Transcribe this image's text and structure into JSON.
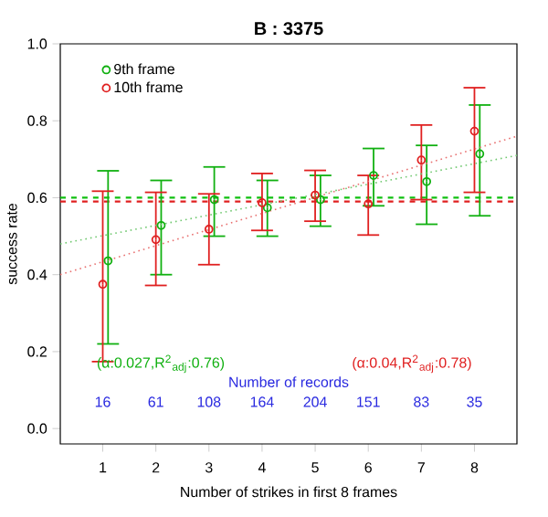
{
  "chart_data": {
    "type": "scatter",
    "title": "B : 3375",
    "xlabel": "Number of strikes in first 8 frames",
    "ylabel": "success rate",
    "xlim": [
      0.2,
      8.8
    ],
    "ylim": [
      -0.04,
      1.0
    ],
    "xticks": [
      1,
      2,
      3,
      4,
      5,
      6,
      7,
      8
    ],
    "yticks": [
      {
        "value": 0,
        "label": "0.0"
      },
      0.2,
      0.4,
      0.6,
      0.8,
      {
        "value": 1,
        "label": "1.0"
      }
    ],
    "marker": "circle",
    "legend": "top left",
    "grid": false,
    "series": [
      {
        "name": "9th frame",
        "color": "#10b010",
        "x": [
          1.1,
          2.1,
          3.1,
          4.1,
          5.1,
          6.1,
          7.1,
          8.1
        ],
        "values": [
          0.436,
          0.528,
          0.595,
          0.574,
          0.595,
          0.658,
          0.642,
          0.714
        ],
        "errors": [
          [
            0.22,
            0.67
          ],
          [
            0.4,
            0.645
          ],
          [
            0.5,
            0.68
          ],
          [
            0.5,
            0.645
          ],
          [
            0.526,
            0.658
          ],
          [
            0.579,
            0.728
          ],
          [
            0.531,
            0.736
          ],
          [
            0.553,
            0.841
          ]
        ]
      },
      {
        "name": "10th frame",
        "color": "#e02020",
        "x": [
          1,
          2,
          3,
          4,
          5,
          6,
          7,
          8
        ],
        "values": [
          0.375,
          0.491,
          0.518,
          0.587,
          0.607,
          0.584,
          0.698,
          0.773
        ],
        "errors": [
          [
            0.174,
            0.617
          ],
          [
            0.372,
            0.614
          ],
          [
            0.426,
            0.61
          ],
          [
            0.515,
            0.663
          ],
          [
            0.539,
            0.671
          ],
          [
            0.503,
            0.658
          ],
          [
            0.595,
            0.789
          ],
          [
            0.614,
            0.886
          ]
        ]
      },
      {
        "type": "line",
        "marker": "none",
        "line_style": "dotted",
        "color": "#70c870",
        "x": [
          0.2,
          8.8
        ],
        "values": [
          0.48,
          0.71
        ]
      },
      {
        "type": "line",
        "marker": "none",
        "line_style": "dotted",
        "color": "#e87070",
        "x": [
          0.2,
          8.8
        ],
        "values": [
          0.4,
          0.76
        ]
      }
    ],
    "ref_lines": [
      {
        "axis": "y",
        "value": 0.6,
        "color": "#10c010",
        "line_style": "dashed"
      },
      {
        "axis": "y",
        "value": 0.59,
        "color": "#e02020",
        "line_style": "dashed"
      }
    ],
    "annotations": [
      "(α:0.027,R$^{2}$$_{adj}$:0.76)",
      "(α:0.04,R$^{2}$$_{adj}$:0.78)",
      "Number of records",
      "16",
      "61",
      "108",
      "164",
      "204",
      "151",
      "83",
      "35"
    ]
  }
}
